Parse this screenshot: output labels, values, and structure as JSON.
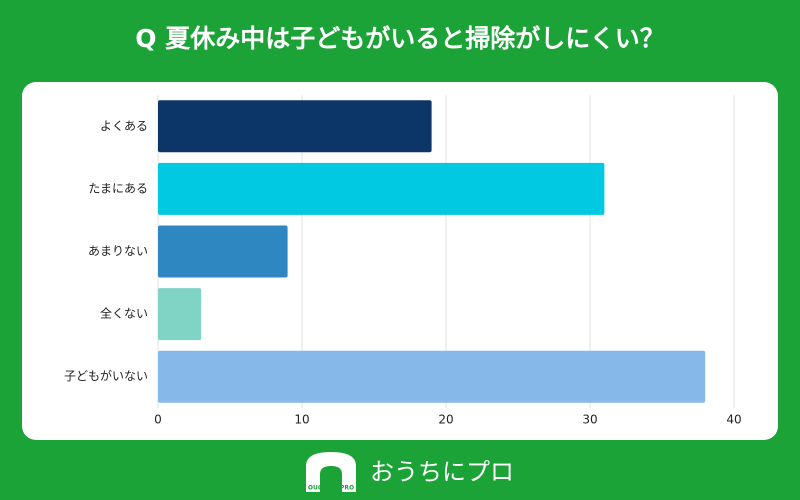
{
  "chart_data": {
    "type": "barh",
    "title": "Q 夏休み中は子どもがいると掃除がしにくい？",
    "categories": [
      "よくある",
      "たまにある",
      "あまりない",
      "全くない",
      "子どもがいない"
    ],
    "values": [
      19,
      31,
      9,
      3,
      38
    ],
    "colors": [
      "#0c3667",
      "#00c9e1",
      "#2f87c1",
      "#7fd4c5",
      "#86b9e9"
    ],
    "xlim": [
      0,
      40
    ],
    "xticks": [
      0,
      10,
      20,
      30,
      40
    ],
    "grid": true
  },
  "footer": {
    "brand": "おうちにプロ",
    "logo_text": "OUCHI ni PRO"
  }
}
